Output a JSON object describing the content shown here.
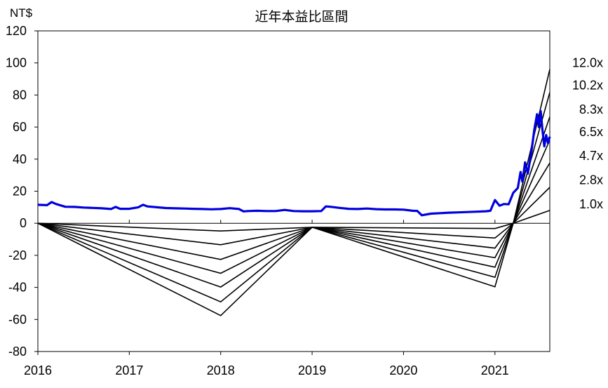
{
  "chart_data": {
    "type": "line",
    "title": "近年本益比區間",
    "ylabel": "NT$",
    "xlabel": "",
    "ylim": [
      -80,
      120
    ],
    "yticks": [
      -80,
      -60,
      -40,
      -20,
      0,
      20,
      40,
      60,
      80,
      100,
      120
    ],
    "xlim": [
      2016.0,
      2021.6
    ],
    "xticks": [
      2016,
      2017,
      2018,
      2019,
      2020,
      2021
    ],
    "grid": "none",
    "colors": {
      "price": "#0000dd",
      "bands": "#000000"
    },
    "price_series": {
      "x": [
        2016.0,
        2016.1,
        2016.15,
        2016.2,
        2016.3,
        2016.4,
        2016.5,
        2016.6,
        2016.7,
        2016.8,
        2016.85,
        2016.9,
        2017.0,
        2017.1,
        2017.15,
        2017.2,
        2017.3,
        2017.4,
        2017.5,
        2017.6,
        2017.7,
        2017.8,
        2017.9,
        2018.0,
        2018.1,
        2018.2,
        2018.25,
        2018.3,
        2018.4,
        2018.5,
        2018.6,
        2018.7,
        2018.8,
        2018.9,
        2019.0,
        2019.1,
        2019.15,
        2019.2,
        2019.3,
        2019.4,
        2019.5,
        2019.6,
        2019.7,
        2019.8,
        2019.9,
        2020.0,
        2020.1,
        2020.15,
        2020.2,
        2020.3,
        2020.4,
        2020.5,
        2020.6,
        2020.7,
        2020.8,
        2020.9,
        2020.95,
        2021.0,
        2021.05,
        2021.1,
        2021.15,
        2021.2,
        2021.25,
        2021.28,
        2021.3,
        2021.33,
        2021.36,
        2021.4,
        2021.43,
        2021.46,
        2021.48,
        2021.5,
        2021.52,
        2021.54,
        2021.56,
        2021.58,
        2021.6
      ],
      "y": [
        11.5,
        11.3,
        13.2,
        12.0,
        10.3,
        10.2,
        9.8,
        9.6,
        9.3,
        8.9,
        10.2,
        9.0,
        9.0,
        10.0,
        11.5,
        10.5,
        10.0,
        9.5,
        9.3,
        9.2,
        9.0,
        8.9,
        8.7,
        8.9,
        9.4,
        8.9,
        7.4,
        7.6,
        7.8,
        7.6,
        7.6,
        8.3,
        7.6,
        7.5,
        7.5,
        7.6,
        10.5,
        10.3,
        9.6,
        9.0,
        8.9,
        9.2,
        8.8,
        8.6,
        8.6,
        8.5,
        7.8,
        7.7,
        5.0,
        6.0,
        6.3,
        6.6,
        6.8,
        7.0,
        7.2,
        7.5,
        7.8,
        14.5,
        11.0,
        12.0,
        11.8,
        19.0,
        22.0,
        32.0,
        26.0,
        38.0,
        31.0,
        45.0,
        58.0,
        68.0,
        60.0,
        70.0,
        58.0,
        48.0,
        55.0,
        50.0,
        54.0
      ]
    },
    "band_anchors_x": [
      2016.0,
      2018.0,
      2019.0,
      2021.0,
      2021.2,
      2021.6
    ],
    "bands": [
      {
        "label": "12.0x",
        "y": [
          0,
          -57.6,
          -2.5,
          -39.6,
          0,
          96.0
        ]
      },
      {
        "label": "10.2x",
        "y": [
          0,
          -49.0,
          -2.5,
          -33.7,
          0,
          81.6
        ]
      },
      {
        "label": "8.3x",
        "y": [
          0,
          -39.8,
          -2.5,
          -27.4,
          0,
          66.4
        ]
      },
      {
        "label": "6.5x",
        "y": [
          0,
          -31.2,
          -2.5,
          -21.5,
          0,
          52.0
        ]
      },
      {
        "label": "4.7x",
        "y": [
          0,
          -22.6,
          -2.5,
          -15.5,
          0,
          37.6
        ]
      },
      {
        "label": "2.8x",
        "y": [
          0,
          -13.4,
          -2.5,
          -9.2,
          0,
          22.4
        ]
      },
      {
        "label": "1.0x",
        "y": [
          0,
          -4.8,
          -2.5,
          -3.3,
          0,
          8.0
        ]
      }
    ],
    "band_label_positions": [
      100,
      86,
      71,
      57,
      42,
      27,
      12
    ]
  }
}
